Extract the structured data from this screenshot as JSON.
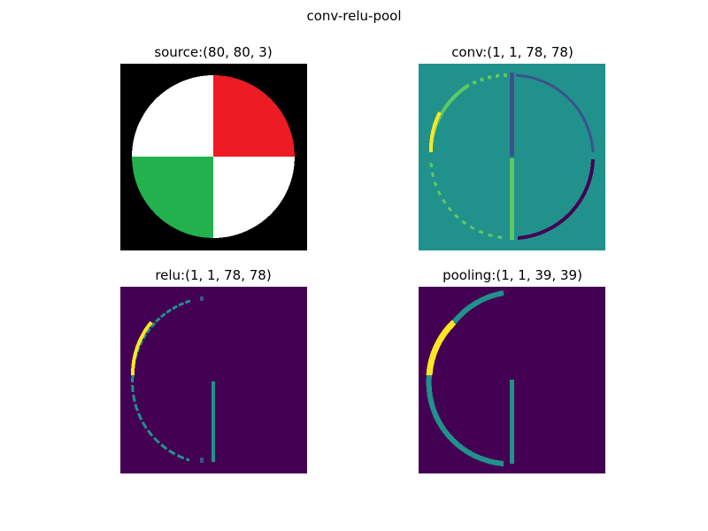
{
  "figure": {
    "suptitle": "conv-relu-pool"
  },
  "panels": [
    {
      "title": "source:(80, 80, 3)"
    },
    {
      "title": "conv:(1, 1, 78, 78)"
    },
    {
      "title": "relu:(1, 1, 78, 78)"
    },
    {
      "title": "pooling:(1, 1, 39, 39)"
    }
  ],
  "colors": {
    "source_background": "#000000",
    "source_white": "#ffffff",
    "source_red": "#ed1c24",
    "source_green": "#22b14c",
    "viridis_dark": "#440154",
    "viridis_mid": "#21918c",
    "viridis_green": "#5ec962",
    "viridis_yellow": "#fde725",
    "viridis_blue": "#3b528b"
  }
}
